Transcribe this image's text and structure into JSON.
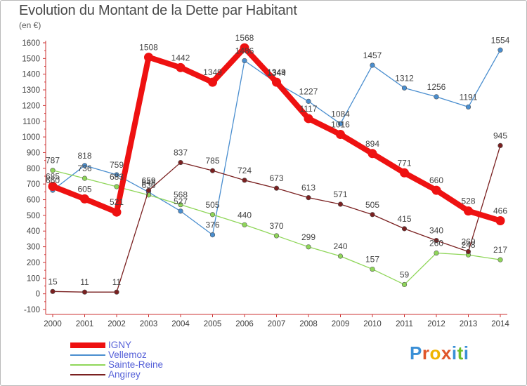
{
  "title": "Evolution du Montant de la Dette par Habitant",
  "subtitle": "(en €)",
  "brand": {
    "text": "Proxiti",
    "letters": [
      "P",
      "r",
      "o",
      "x",
      "i",
      "t",
      "i"
    ],
    "colors": [
      "#3a8fd6",
      "#e0552a",
      "#f0b400",
      "#e0552a",
      "#3a8fd6",
      "#6bbf2a",
      "#3a8fd6"
    ]
  },
  "chart_data": {
    "type": "line",
    "title": "Evolution du Montant de la Dette par Habitant",
    "subtitle": "(en €)",
    "xlabel": "",
    "ylabel": "",
    "ylim": [
      -100,
      1600
    ],
    "yticks": [
      "-100",
      "0",
      "100",
      "200",
      "300",
      "400",
      "500",
      "600",
      "700",
      "800",
      "900",
      "1000",
      "1100",
      "1200",
      "1300",
      "1400",
      "1500",
      "1600"
    ],
    "categories": [
      "2000",
      "2001",
      "2002",
      "2003",
      "2004",
      "2005",
      "2006",
      "2007",
      "2008",
      "2009",
      "2010",
      "2011",
      "2012",
      "2013",
      "2014"
    ],
    "grid": false,
    "legend": "bottom-left",
    "series": [
      {
        "name": "IGNY",
        "color": "#ee1111",
        "values": [
          685,
          605,
          521,
          1508,
          1442,
          1349,
          1568,
          1349,
          1117,
          1016,
          894,
          771,
          660,
          528,
          466
        ],
        "labels": [
          "685",
          "605",
          "521",
          "1508",
          "1442",
          "1349",
          "1568",
          "1349",
          "1117",
          "1016",
          "894",
          "771",
          "660",
          "528",
          "466"
        ]
      },
      {
        "name": "Vellemoz",
        "color": "#4a8ecf",
        "values": [
          660,
          818,
          759,
          648,
          527,
          376,
          1486,
          1344,
          1227,
          1084,
          1457,
          1312,
          1256,
          1191,
          1554
        ],
        "labels": [
          "660",
          "818",
          "759",
          "648",
          "527",
          "376",
          "1486",
          "1344",
          "1227",
          "1084",
          "1457",
          "1312",
          "1256",
          "1191",
          "1554"
        ]
      },
      {
        "name": "Sainte-Reine",
        "color": "#8fd659",
        "values": [
          787,
          736,
          683,
          630,
          568,
          505,
          440,
          370,
          299,
          240,
          157,
          59,
          260,
          248,
          217
        ],
        "labels": [
          "787",
          "736",
          "683",
          "630",
          "568",
          "505",
          "440",
          "370",
          "299",
          "240",
          "157",
          "59",
          "260",
          "248",
          "217"
        ]
      },
      {
        "name": "Angirey",
        "color": "#7a2020",
        "values": [
          15,
          11,
          11,
          659,
          837,
          785,
          724,
          673,
          613,
          571,
          505,
          415,
          340,
          269,
          945
        ],
        "labels": [
          "15",
          "11",
          "11",
          "659",
          "837",
          "785",
          "724",
          "673",
          "613",
          "571",
          "505",
          "415",
          "340",
          "269",
          "945"
        ]
      }
    ]
  }
}
